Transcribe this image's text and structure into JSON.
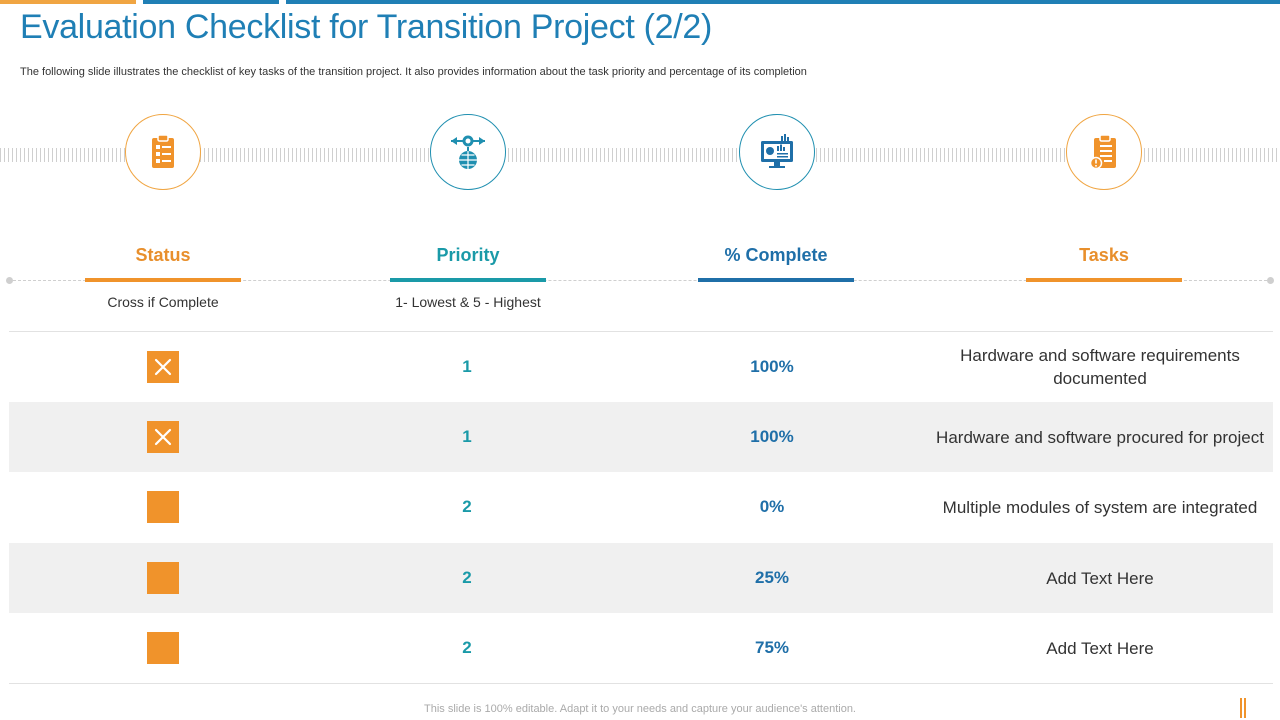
{
  "title": "Evaluation Checklist for Transition Project (2/2)",
  "subtitle": "The following slide illustrates the checklist of key tasks of the  transition project. It also provides information about the task priority and percentage of its completion",
  "colors": {
    "orange": "#f0932b",
    "teal": "#1a9aa8",
    "blue": "#1f6fa8",
    "title_blue": "#1f7fb5"
  },
  "icons": [
    "clipboard-list-icon",
    "globe-target-icon",
    "computer-dashboard-icon",
    "clipboard-alert-icon"
  ],
  "columns": [
    {
      "label": "Status",
      "sub": "Cross if Complete"
    },
    {
      "label": "Priority",
      "sub": "1- Lowest & 5 - Highest"
    },
    {
      "label": "% Complete",
      "sub": ""
    },
    {
      "label": "Tasks",
      "sub": ""
    }
  ],
  "rows": [
    {
      "complete": true,
      "priority": "1",
      "percent": "100%",
      "task": "Hardware and software requirements documented"
    },
    {
      "complete": true,
      "priority": "1",
      "percent": "100%",
      "task": "Hardware and software procured for project"
    },
    {
      "complete": false,
      "priority": "2",
      "percent": "0%",
      "task": "Multiple modules of system are integrated"
    },
    {
      "complete": false,
      "priority": "2",
      "percent": "25%",
      "task": "Add Text Here"
    },
    {
      "complete": false,
      "priority": "2",
      "percent": "75%",
      "task": "Add Text Here"
    }
  ],
  "footer": "This slide is 100% editable. Adapt it to your needs and capture your audience's attention."
}
